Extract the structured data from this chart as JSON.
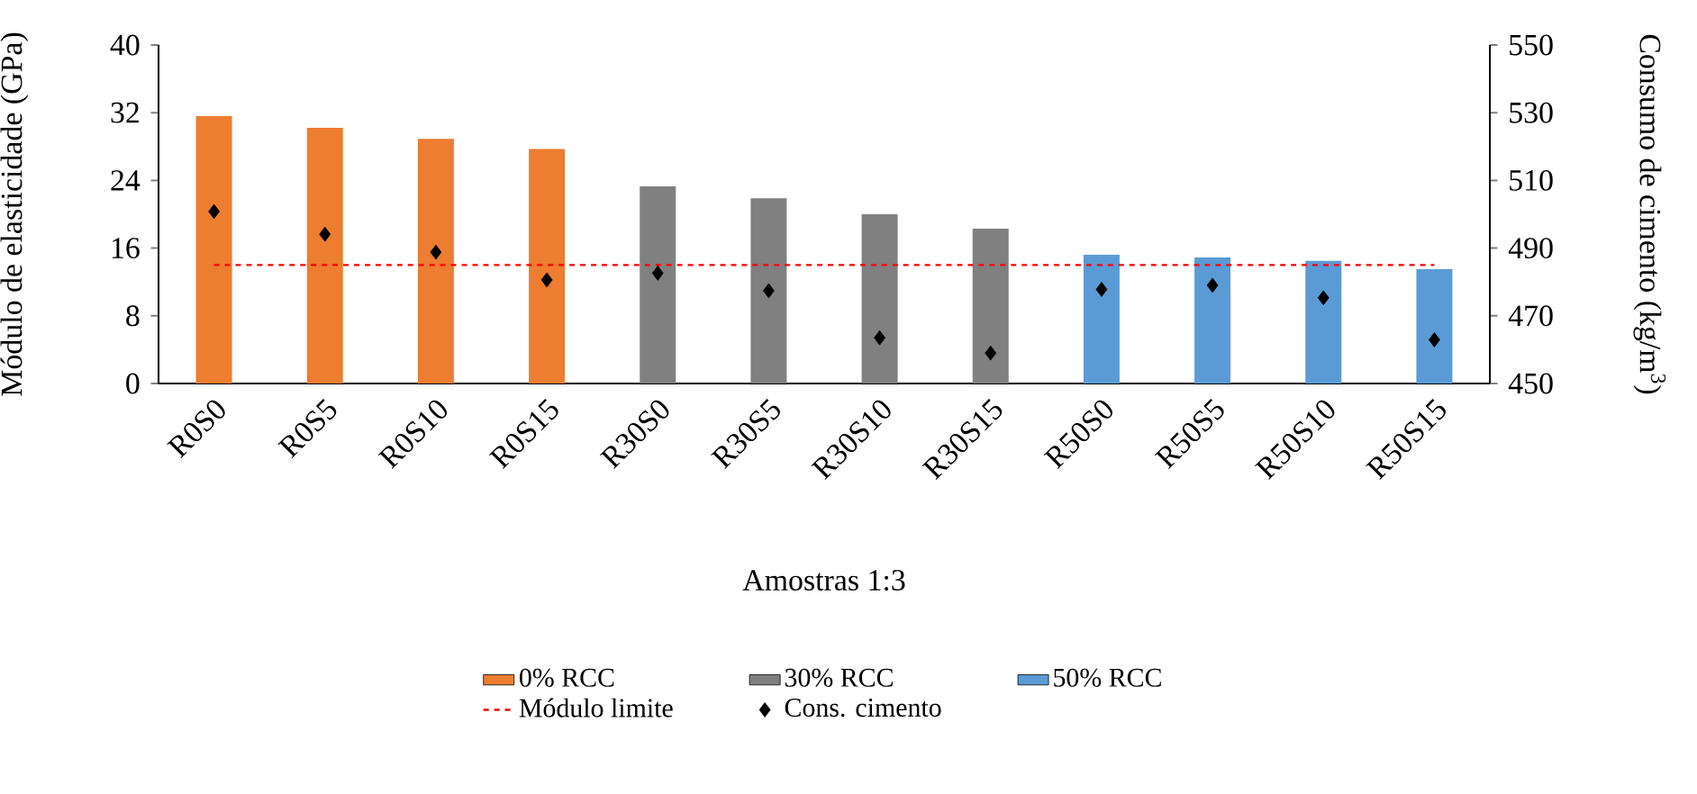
{
  "chart_data": {
    "type": "bar",
    "xlabel": "Amostras 1:3",
    "ylabel": "Módulo de elasticidade (GPa)",
    "y2label": "Consumo de cimento (kg/m$^{3}$)",
    "categories": [
      "R0S0",
      "R0S5",
      "R0S10",
      "R0S15",
      "R30S0",
      "R30S5",
      "R30S10",
      "R30S15",
      "R50S0",
      "R50S5",
      "R50S10",
      "R50S15"
    ],
    "series": [
      {
        "name": "0% RCC",
        "color": "#ed7d31",
        "values": [
          31.6,
          30.2,
          28.9,
          27.7,
          null,
          null,
          null,
          null,
          null,
          null,
          null,
          null
        ]
      },
      {
        "name": "30% RCC",
        "color": "#808080",
        "values": [
          null,
          null,
          null,
          null,
          23.3,
          21.9,
          20.0,
          18.3,
          null,
          null,
          null,
          null
        ]
      },
      {
        "name": "50% RCC",
        "color": "#5b9bd5",
        "values": [
          null,
          null,
          null,
          null,
          null,
          null,
          null,
          null,
          15.2,
          14.9,
          14.5,
          13.5
        ]
      },
      {
        "name": "Cons. cimento",
        "type": "scatter",
        "axis": "y2",
        "marker": "diamond",
        "color": "#000000",
        "values": [
          500.8,
          494.1,
          488.8,
          480.6,
          482.6,
          477.4,
          463.5,
          459.0,
          477.8,
          479.0,
          475.3,
          462.9
        ]
      }
    ],
    "ref_lines": [
      {
        "axis": "y",
        "value": 14,
        "label": "Módulo limite",
        "color": "#ff0000",
        "line_style": "dashed"
      }
    ],
    "ylim": [
      0,
      40
    ],
    "yticks": [
      0,
      8,
      16,
      24,
      32,
      40
    ],
    "y2lim": [
      450,
      550
    ],
    "y2ticks": [
      450,
      470,
      490,
      510,
      530,
      550
    ],
    "legend": "bottom"
  }
}
